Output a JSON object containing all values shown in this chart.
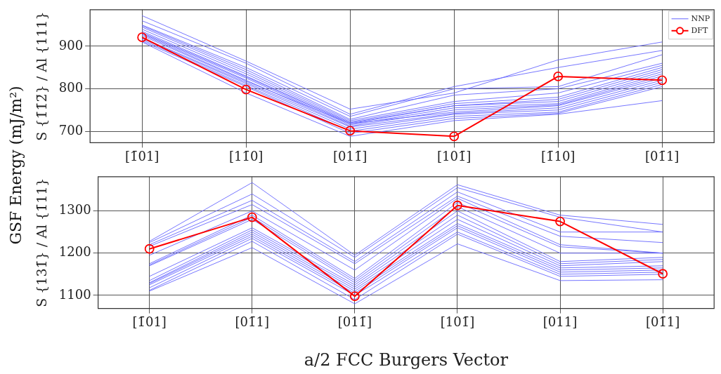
{
  "chart_data": [
    {
      "type": "line",
      "ylabel": "S {1̄1̄2̄} / Al {111}",
      "annotations": [
        "GSF Energy (mJ/m²)"
      ],
      "categories": [
        "[1̄01]",
        "[11̄0]",
        "[011̄]",
        "[101̄]",
        "[1̄10]",
        "[01̄1]"
      ],
      "ylim": [
        673,
        986
      ],
      "yticks": [
        700,
        800,
        900
      ],
      "grid": true,
      "legend": "top right",
      "series": [
        {
          "name": "NNP",
          "color": "#6666ff",
          "marker": "none",
          "values": [
            972,
            865,
            752,
            790,
            868,
            910
          ]
        },
        {
          "color": "#6666ff",
          "marker": "none",
          "values": [
            960,
            860,
            740,
            805,
            850,
            890
          ]
        },
        {
          "color": "#6666ff",
          "marker": "none",
          "values": [
            950,
            850,
            735,
            800,
            805,
            880
          ]
        },
        {
          "color": "#6666ff",
          "marker": "none",
          "values": [
            948,
            845,
            728,
            785,
            800,
            860
          ]
        },
        {
          "color": "#6666ff",
          "marker": "none",
          "values": [
            945,
            840,
            725,
            770,
            790,
            855
          ]
        },
        {
          "color": "#6666ff",
          "marker": "none",
          "values": [
            940,
            835,
            722,
            765,
            780,
            850
          ]
        },
        {
          "color": "#6666ff",
          "marker": "none",
          "values": [
            935,
            830,
            720,
            760,
            775,
            845
          ]
        },
        {
          "color": "#6666ff",
          "marker": "none",
          "values": [
            932,
            828,
            718,
            760,
            770,
            840
          ]
        },
        {
          "color": "#6666ff",
          "marker": "none",
          "values": [
            930,
            825,
            715,
            755,
            765,
            835
          ]
        },
        {
          "color": "#6666ff",
          "marker": "none",
          "values": [
            928,
            820,
            712,
            750,
            762,
            830
          ]
        },
        {
          "color": "#6666ff",
          "marker": "none",
          "values": [
            925,
            818,
            718,
            745,
            760,
            825
          ]
        },
        {
          "color": "#6666ff",
          "marker": "none",
          "values": [
            920,
            815,
            710,
            742,
            755,
            820
          ]
        },
        {
          "color": "#6666ff",
          "marker": "none",
          "values": [
            918,
            812,
            705,
            740,
            750,
            815
          ]
        },
        {
          "color": "#6666ff",
          "marker": "none",
          "values": [
            915,
            808,
            700,
            735,
            745,
            810
          ]
        },
        {
          "color": "#6666ff",
          "marker": "none",
          "values": [
            912,
            805,
            695,
            730,
            742,
            805
          ]
        },
        {
          "color": "#6666ff",
          "marker": "none",
          "values": [
            910,
            790,
            688,
            725,
            740,
            772
          ]
        },
        {
          "name": "DFT",
          "color": "#ff0000",
          "marker": "circle",
          "values": [
            921,
            798,
            701,
            688,
            829,
            820
          ]
        }
      ]
    },
    {
      "type": "line",
      "ylabel": "S {131̄} / Al {1̄11}",
      "xlabel": "a/2 FCC Burgers Vector",
      "categories": [
        "[1̄01]",
        "[01̄1]",
        "[011̄]",
        "[101̄]",
        "[011]",
        "[01̄1]"
      ],
      "ylim": [
        1069,
        1381
      ],
      "yticks": [
        1100,
        1200,
        1300
      ],
      "grid": true,
      "series": [
        {
          "color": "#6666ff",
          "marker": "none",
          "values": [
            1228,
            1367,
            1195,
            1362,
            1290,
            1268
          ]
        },
        {
          "color": "#6666ff",
          "marker": "none",
          "values": [
            1225,
            1340,
            1190,
            1355,
            1285,
            1250
          ]
        },
        {
          "color": "#6666ff",
          "marker": "none",
          "values": [
            1220,
            1325,
            1180,
            1345,
            1250,
            1250
          ]
        },
        {
          "color": "#6666ff",
          "marker": "none",
          "values": [
            1216,
            1315,
            1175,
            1335,
            1240,
            1225
          ]
        },
        {
          "color": "#6666ff",
          "marker": "none",
          "values": [
            1195,
            1300,
            1160,
            1330,
            1220,
            1200
          ]
        },
        {
          "color": "#6666ff",
          "marker": "none",
          "values": [
            1175,
            1290,
            1140,
            1320,
            1215,
            1200
          ]
        },
        {
          "color": "#6666ff",
          "marker": "none",
          "values": [
            1172,
            1285,
            1135,
            1310,
            1200,
            1200
          ]
        },
        {
          "color": "#6666ff",
          "marker": "none",
          "values": [
            1170,
            1280,
            1130,
            1300,
            1180,
            1190
          ]
        },
        {
          "color": "#6666ff",
          "marker": "none",
          "values": [
            1145,
            1260,
            1125,
            1290,
            1175,
            1185
          ]
        },
        {
          "color": "#6666ff",
          "marker": "none",
          "values": [
            1135,
            1255,
            1120,
            1280,
            1170,
            1180
          ]
        },
        {
          "color": "#6666ff",
          "marker": "none",
          "values": [
            1130,
            1250,
            1115,
            1270,
            1165,
            1170
          ]
        },
        {
          "color": "#6666ff",
          "marker": "none",
          "values": [
            1128,
            1245,
            1110,
            1265,
            1160,
            1165
          ]
        },
        {
          "color": "#6666ff",
          "marker": "none",
          "values": [
            1125,
            1240,
            1105,
            1260,
            1155,
            1160
          ]
        },
        {
          "color": "#6666ff",
          "marker": "none",
          "values": [
            1118,
            1235,
            1100,
            1250,
            1150,
            1155
          ]
        },
        {
          "color": "#6666ff",
          "marker": "none",
          "values": [
            1112,
            1228,
            1090,
            1245,
            1145,
            1150
          ]
        },
        {
          "color": "#6666ff",
          "marker": "none",
          "values": [
            1110,
            1213,
            1080,
            1222,
            1135,
            1137
          ]
        },
        {
          "color": "#ff0000",
          "marker": "circle",
          "values": [
            1210,
            1285,
            1098,
            1313,
            1275,
            1151
          ]
        }
      ]
    }
  ]
}
